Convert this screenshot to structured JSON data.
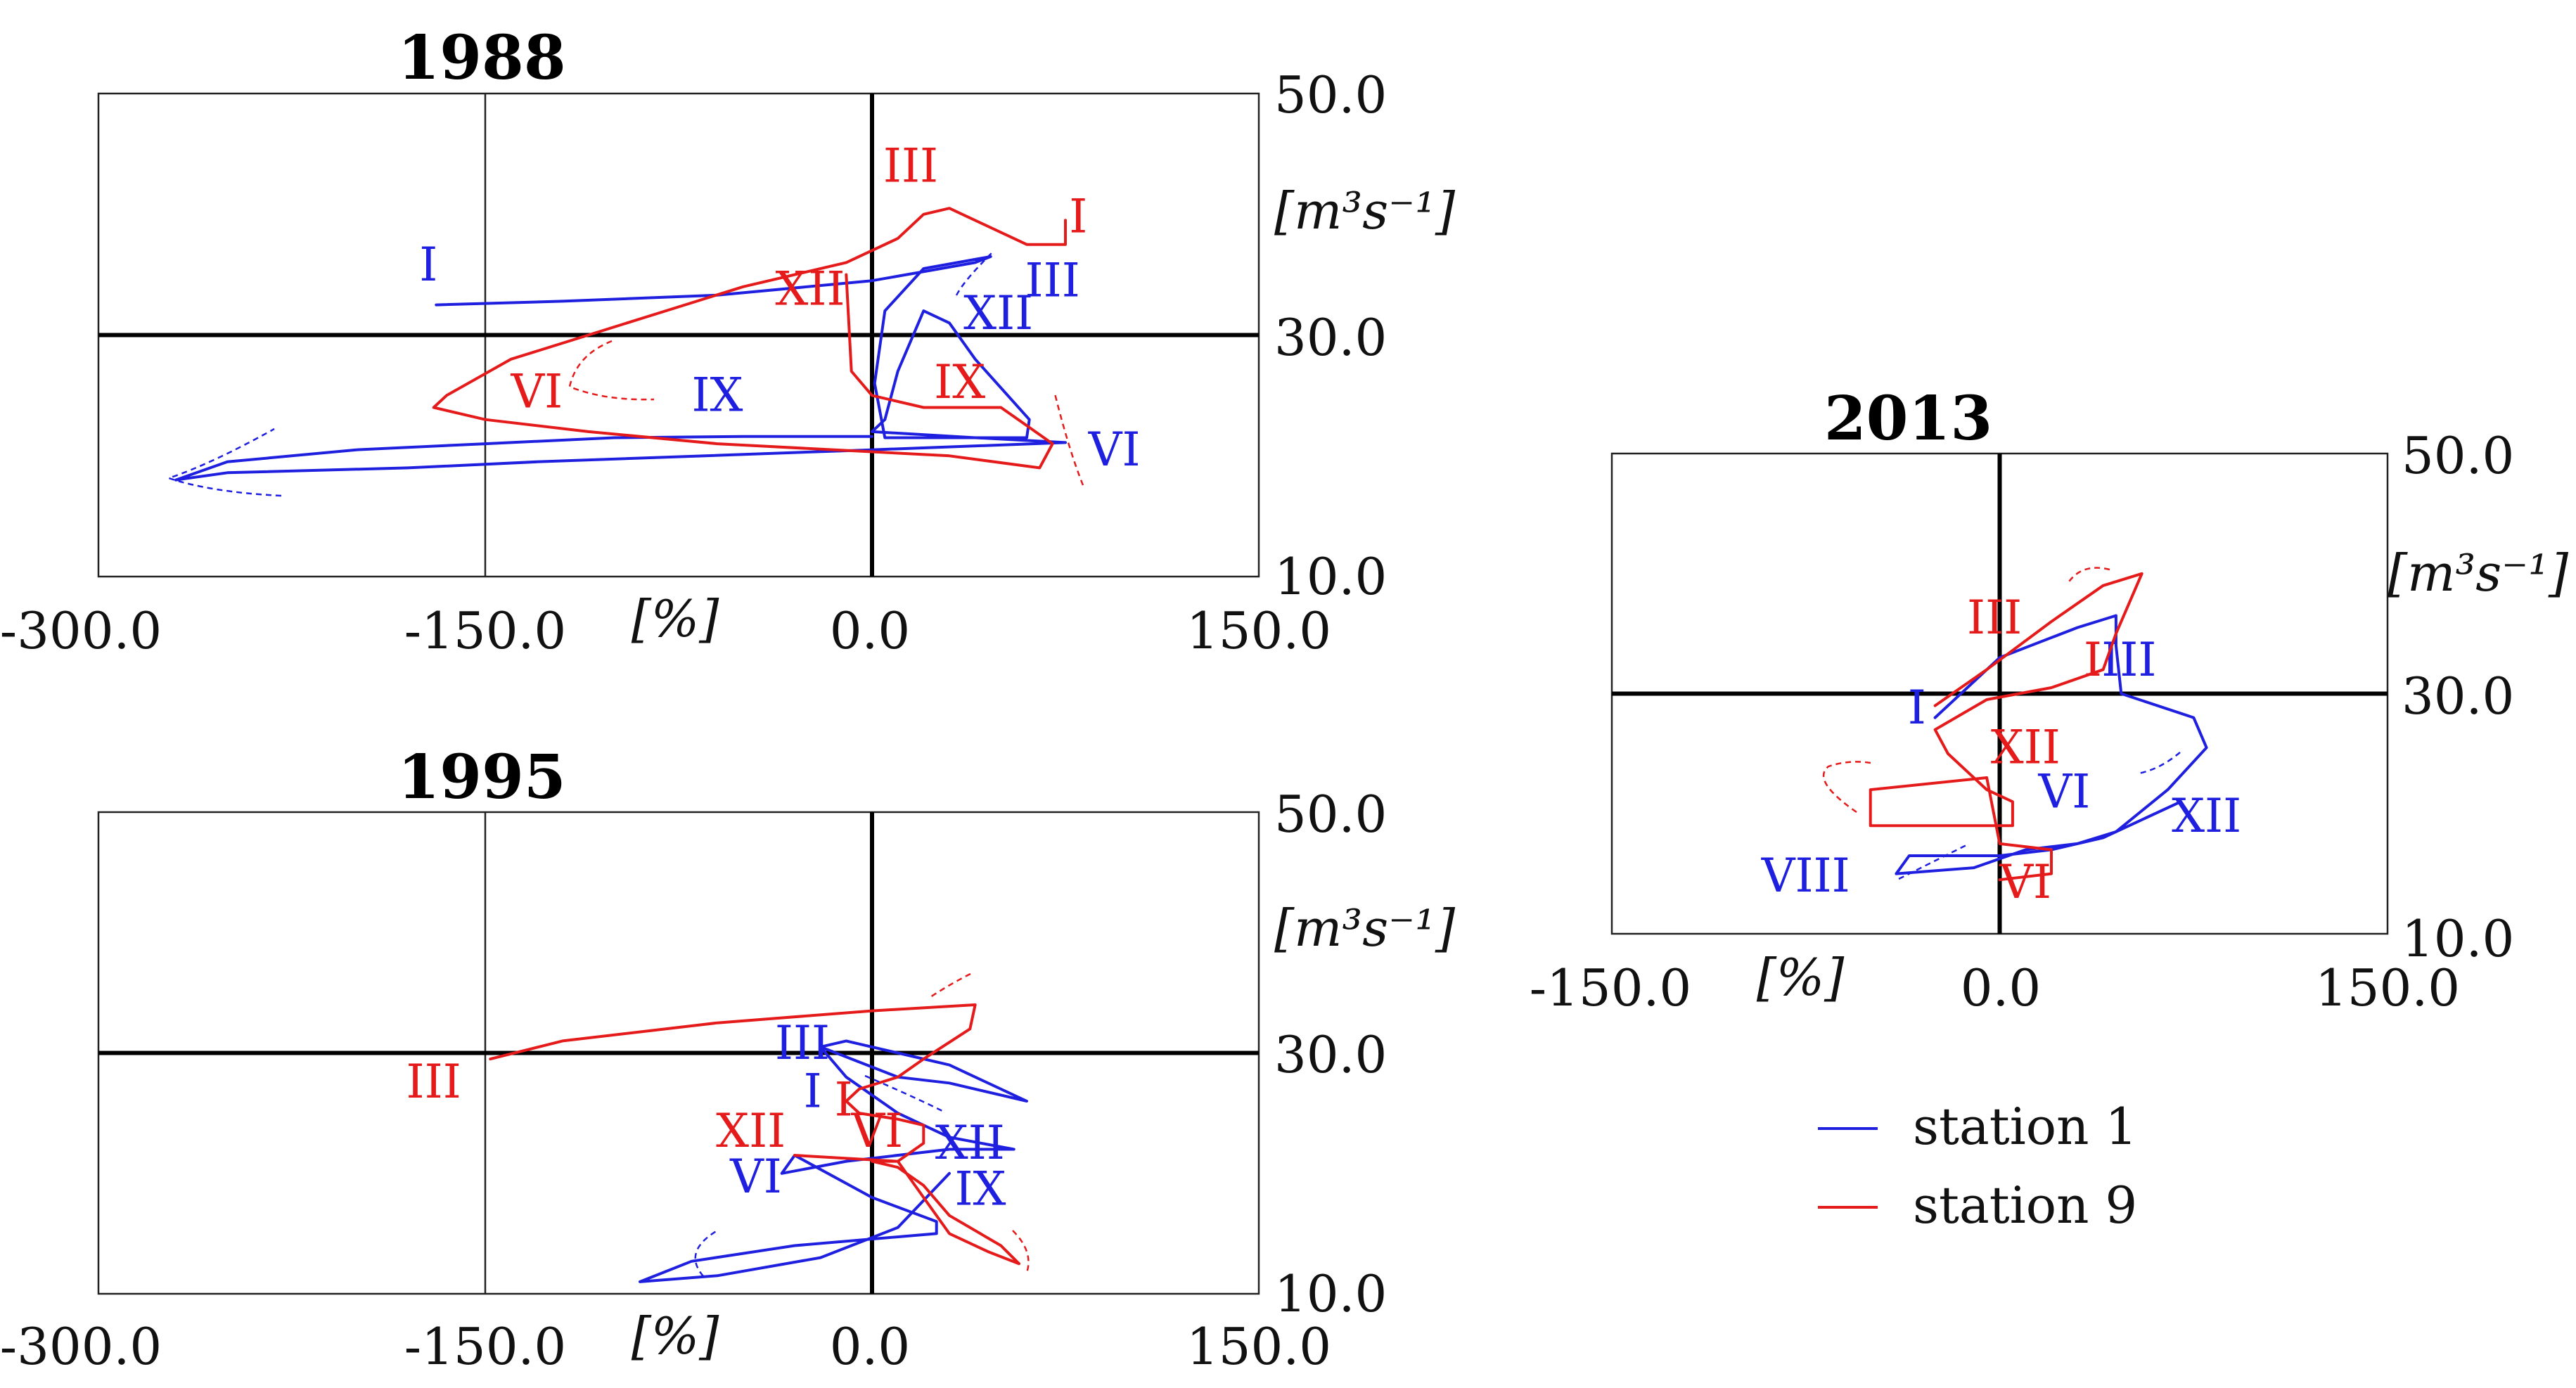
{
  "colors": {
    "station1": "#1f1fe0",
    "station9": "#e51a1a",
    "frame": "#222222",
    "zero": "#000000"
  },
  "legend": {
    "items": [
      {
        "label": "station 1",
        "color": "#1f1fe0"
      },
      {
        "label": "station 9",
        "color": "#e51a1a"
      }
    ]
  },
  "chart_data": [
    {
      "type": "line",
      "title": "1988",
      "xlabel": "[%]",
      "ylabel_html": "[m³s⁻¹]",
      "x_ticks": [
        "-300.0",
        "-150.0",
        "0.0",
        "150.0"
      ],
      "y_ticks": [
        "50.0",
        "30.0",
        "10.0"
      ],
      "xlim": [
        -300,
        150
      ],
      "ylim": [
        10,
        50
      ],
      "series": [
        {
          "name": "station 1",
          "color": "#1f1fe0",
          "points": [
            [
              -169,
              32.5
            ],
            [
              -120,
              32.8
            ],
            [
              -60,
              33.3
            ],
            [
              0,
              34.5
            ],
            [
              40,
              36
            ],
            [
              46,
              36.5
            ],
            [
              20,
              35.5
            ],
            [
              5,
              32
            ],
            [
              1,
              26
            ],
            [
              5,
              21.5
            ],
            [
              60,
              21.5
            ],
            [
              61,
              23
            ],
            [
              40,
              28
            ],
            [
              30,
              31
            ],
            [
              20,
              32
            ],
            [
              10,
              27
            ],
            [
              5,
              23
            ],
            [
              0,
              22
            ],
            [
              40,
              21.5
            ],
            [
              75,
              21.1
            ],
            [
              0,
              20.5
            ],
            [
              -130,
              19.5
            ],
            [
              -180,
              19
            ],
            [
              -250,
              18.6
            ],
            [
              -270,
              18
            ],
            [
              -250,
              19.5
            ],
            [
              -200,
              20.5
            ],
            [
              -150,
              21
            ],
            [
              -100,
              21.5
            ],
            [
              -50,
              21.6
            ],
            [
              0,
              21.6
            ]
          ],
          "labels": [
            {
              "text": "I",
              "x": -172,
              "y": 34.5
            },
            {
              "text": "III",
              "x": 70,
              "y": 33.2
            },
            {
              "text": "XII",
              "x": 49,
              "y": 30.5
            },
            {
              "text": "IX",
              "x": -60,
              "y": 23.7
            },
            {
              "text": "VI",
              "x": 94,
              "y": 19.2
            }
          ]
        },
        {
          "name": "station 9",
          "color": "#e51a1a",
          "points": [
            [
              -10,
              35
            ],
            [
              -8,
              27
            ],
            [
              0,
              25
            ],
            [
              20,
              24
            ],
            [
              50,
              24
            ],
            [
              60,
              22.5
            ],
            [
              70,
              21
            ],
            [
              65,
              19
            ],
            [
              30,
              20
            ],
            [
              -60,
              21
            ],
            [
              -110,
              22
            ],
            [
              -150,
              23
            ],
            [
              -170,
              24
            ],
            [
              -165,
              25
            ],
            [
              -140,
              28
            ],
            [
              -110,
              30
            ],
            [
              -80,
              32
            ],
            [
              -50,
              34
            ],
            [
              -10,
              36
            ],
            [
              10,
              38
            ],
            [
              20,
              40
            ],
            [
              30,
              40.5
            ],
            [
              60,
              37.5
            ],
            [
              75,
              37.5
            ],
            [
              75,
              39.5
            ]
          ],
          "labels": [
            {
              "text": "III",
              "x": 15,
              "y": 42.7
            },
            {
              "text": "I",
              "x": 80,
              "y": 38.5
            },
            {
              "text": "XII",
              "x": -24,
              "y": 32.5
            },
            {
              "text": "VI",
              "x": -130,
              "y": 24
            },
            {
              "text": "IX",
              "x": 34,
              "y": 24.8
            }
          ]
        }
      ]
    },
    {
      "type": "line",
      "title": "1995",
      "xlabel": "[%]",
      "ylabel_html": "[m³s⁻¹]",
      "x_ticks": [
        "-300.0",
        "-150.0",
        "0.0",
        "150.0"
      ],
      "y_ticks": [
        "50.0",
        "30.0",
        "10.0"
      ],
      "xlim": [
        -300,
        150
      ],
      "ylim": [
        10,
        50
      ],
      "series": [
        {
          "name": "station 1",
          "color": "#1f1fe0",
          "points": [
            [
              -20,
              30.5
            ],
            [
              -10,
              31
            ],
            [
              10,
              30
            ],
            [
              30,
              29
            ],
            [
              60,
              26
            ],
            [
              30,
              27.5
            ],
            [
              10,
              28
            ],
            [
              -20,
              30.5
            ],
            [
              -10,
              28
            ],
            [
              10,
              25
            ],
            [
              30,
              23
            ],
            [
              55,
              22
            ],
            [
              30,
              22
            ],
            [
              -10,
              21
            ],
            [
              -35,
              20
            ],
            [
              -30,
              21.5
            ],
            [
              0,
              18
            ],
            [
              25,
              16
            ],
            [
              25,
              15
            ],
            [
              -30,
              14
            ],
            [
              -70,
              12.7
            ],
            [
              -90,
              11
            ],
            [
              -60,
              11.5
            ],
            [
              -20,
              13
            ],
            [
              10,
              15.5
            ],
            [
              30,
              20
            ]
          ],
          "labels": [
            {
              "text": "III",
              "x": -27,
              "y": 29.5
            },
            {
              "text": "I",
              "x": -23,
              "y": 25.5
            },
            {
              "text": "XII",
              "x": 38,
              "y": 21.2
            },
            {
              "text": "VI",
              "x": -45,
              "y": 18.4
            },
            {
              "text": "IX",
              "x": 42,
              "y": 17.4
            }
          ]
        },
        {
          "name": "station 9",
          "color": "#e51a1a",
          "points": [
            [
              -148,
              29.5
            ],
            [
              -120,
              31
            ],
            [
              -60,
              32.5
            ],
            [
              0,
              33.5
            ],
            [
              40,
              34
            ],
            [
              38,
              32
            ],
            [
              20,
              29.5
            ],
            [
              10,
              28
            ],
            [
              -5,
              27
            ],
            [
              -10,
              26
            ],
            [
              -5,
              25
            ],
            [
              10,
              24.5
            ],
            [
              20,
              24
            ],
            [
              20,
              22.5
            ],
            [
              10,
              21
            ],
            [
              0,
              21
            ],
            [
              10,
              20.5
            ],
            [
              20,
              19
            ],
            [
              30,
              16.5
            ],
            [
              50,
              14
            ],
            [
              57,
              12.5
            ],
            [
              45,
              13.5
            ],
            [
              30,
              15
            ],
            [
              20,
              18
            ],
            [
              10,
              21
            ],
            [
              -30,
              21.5
            ]
          ],
          "labels": [
            {
              "text": "III",
              "x": -170,
              "y": 26.3
            },
            {
              "text": "XII",
              "x": -47,
              "y": 22.2
            },
            {
              "text": "VI",
              "x": 2,
              "y": 22.2
            },
            {
              "text": "I",
              "x": -11,
              "y": 24.8
            }
          ]
        }
      ]
    },
    {
      "type": "line",
      "title": "2013",
      "xlabel": "[%]",
      "ylabel_html": "[m³s⁻¹]",
      "x_ticks": [
        "-150.0",
        "0.0",
        "150.0"
      ],
      "y_ticks": [
        "50.0",
        "30.0",
        "10.0"
      ],
      "xlim": [
        -150,
        150
      ],
      "ylim": [
        10,
        50
      ],
      "series": [
        {
          "name": "station 1",
          "color": "#1f1fe0",
          "points": [
            [
              -25,
              28
            ],
            [
              0,
              33
            ],
            [
              30,
              35.5
            ],
            [
              45,
              36.5
            ],
            [
              45,
              34
            ],
            [
              47,
              30
            ],
            [
              75,
              28
            ],
            [
              80,
              25.5
            ],
            [
              65,
              22
            ],
            [
              45,
              18.5
            ],
            [
              30,
              17.5
            ],
            [
              10,
              17
            ],
            [
              -10,
              15.5
            ],
            [
              -40,
              15
            ],
            [
              -35,
              16.5
            ],
            [
              0,
              16.5
            ],
            [
              20,
              17
            ],
            [
              40,
              18
            ],
            [
              70,
              21
            ]
          ],
          "labels": [
            {
              "text": "I",
              "x": -32,
              "y": 27.5
            },
            {
              "text": "III",
              "x": 50,
              "y": 31.5
            },
            {
              "text": "VI",
              "x": 25,
              "y": 20.5
            },
            {
              "text": "XII",
              "x": 80,
              "y": 18.5
            },
            {
              "text": "VIII",
              "x": -75,
              "y": 13.5
            }
          ]
        },
        {
          "name": "station 9",
          "color": "#e51a1a",
          "points": [
            [
              -25,
              29
            ],
            [
              -5,
              32
            ],
            [
              20,
              36
            ],
            [
              40,
              39
            ],
            [
              55,
              40
            ],
            [
              45,
              35
            ],
            [
              40,
              32
            ],
            [
              20,
              30.5
            ],
            [
              -5,
              29.5
            ],
            [
              -25,
              27
            ],
            [
              -20,
              25
            ],
            [
              -5,
              22
            ],
            [
              5,
              21
            ],
            [
              5,
              19
            ],
            [
              -20,
              19
            ],
            [
              -50,
              19
            ],
            [
              -50,
              22
            ],
            [
              -5,
              23
            ],
            [
              0,
              17.5
            ],
            [
              20,
              17
            ],
            [
              20,
              15
            ],
            [
              0,
              14.5
            ]
          ],
          "labels": [
            {
              "text": "III",
              "x": -2,
              "y": 35
            },
            {
              "text": "I",
              "x": 36,
              "y": 31.5
            },
            {
              "text": "XII",
              "x": 10,
              "y": 24.2
            },
            {
              "text": "VI",
              "x": 10,
              "y": 13
            }
          ]
        }
      ]
    }
  ]
}
